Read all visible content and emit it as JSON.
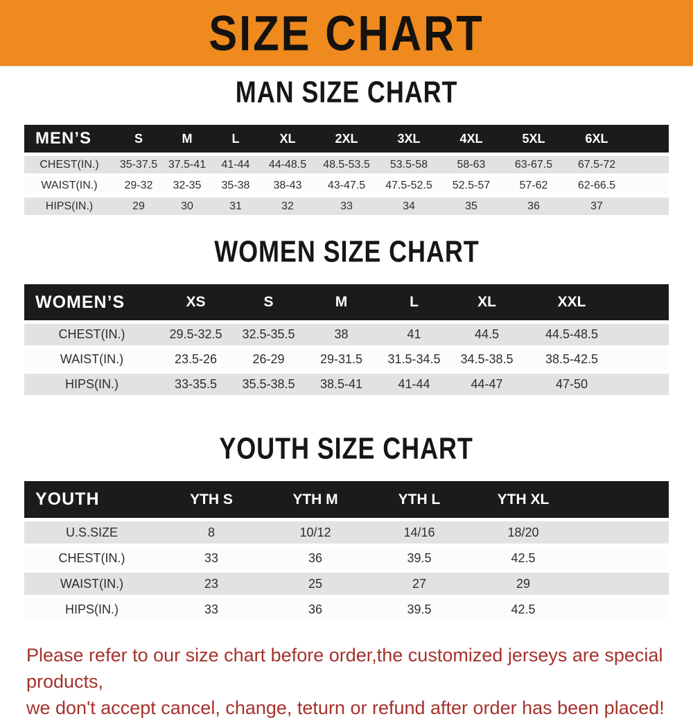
{
  "banner": {
    "title": "SIZE CHART"
  },
  "colors": {
    "banner_orange": "#EE8A1E",
    "header_bar_black": "#1B1B1B",
    "row_gray": "#E2E2E2",
    "row_white": "#FCFCFC",
    "note_red": "#A5312B"
  },
  "chart_data": [
    {
      "type": "table",
      "title": "MAN SIZE CHART",
      "corner_label": "MEN’S",
      "columns": [
        "S",
        "M",
        "L",
        "XL",
        "2XL",
        "3XL",
        "4XL",
        "5XL",
        "6XL"
      ],
      "rows": [
        {
          "label": "CHEST(IN.)",
          "values": [
            "35-37.5",
            "37.5-41",
            "41-44",
            "44-48.5",
            "48.5-53.5",
            "53.5-58",
            "58-63",
            "63-67.5",
            "67.5-72"
          ]
        },
        {
          "label": "WAIST(IN.)",
          "values": [
            "29-32",
            "32-35",
            "35-38",
            "38-43",
            "43-47.5",
            "47.5-52.5",
            "52.5-57",
            "57-62",
            "62-66.5"
          ]
        },
        {
          "label": "HIPS(IN.)",
          "values": [
            "29",
            "30",
            "31",
            "32",
            "33",
            "34",
            "35",
            "36",
            "37"
          ]
        }
      ]
    },
    {
      "type": "table",
      "title": "WOMEN SIZE CHART",
      "corner_label": "WOMEN’S",
      "columns": [
        "XS",
        "S",
        "M",
        "L",
        "XL",
        "XXL"
      ],
      "rows": [
        {
          "label": "CHEST(IN.)",
          "values": [
            "29.5-32.5",
            "32.5-35.5",
            "38",
            "41",
            "44.5",
            "44.5-48.5"
          ]
        },
        {
          "label": "WAIST(IN.)",
          "values": [
            "23.5-26",
            "26-29",
            "29-31.5",
            "31.5-34.5",
            "34.5-38.5",
            "38.5-42.5"
          ]
        },
        {
          "label": "HIPS(IN.)",
          "values": [
            "33-35.5",
            "35.5-38.5",
            "38.5-41",
            "41-44",
            "44-47",
            "47-50"
          ]
        }
      ]
    },
    {
      "type": "table",
      "title": "YOUTH SIZE CHART",
      "corner_label": "YOUTH",
      "columns": [
        "YTH S",
        "YTH M",
        "YTH L",
        "YTH XL"
      ],
      "rows": [
        {
          "label": "U.S.SIZE",
          "values": [
            "8",
            "10/12",
            "14/16",
            "18/20"
          ]
        },
        {
          "label": "CHEST(IN.)",
          "values": [
            "33",
            "36",
            "39.5",
            "42.5"
          ]
        },
        {
          "label": "WAIST(IN.)",
          "values": [
            "23",
            "25",
            "27",
            "29"
          ]
        },
        {
          "label": "HIPS(IN.)",
          "values": [
            "33",
            "36",
            "39.5",
            "42.5"
          ]
        }
      ]
    }
  ],
  "note": {
    "line1": "Please refer to our size chart before order,the customized jerseys are special products,",
    "line2": "we don't accept cancel, change, teturn or refund after order has been placed!"
  }
}
